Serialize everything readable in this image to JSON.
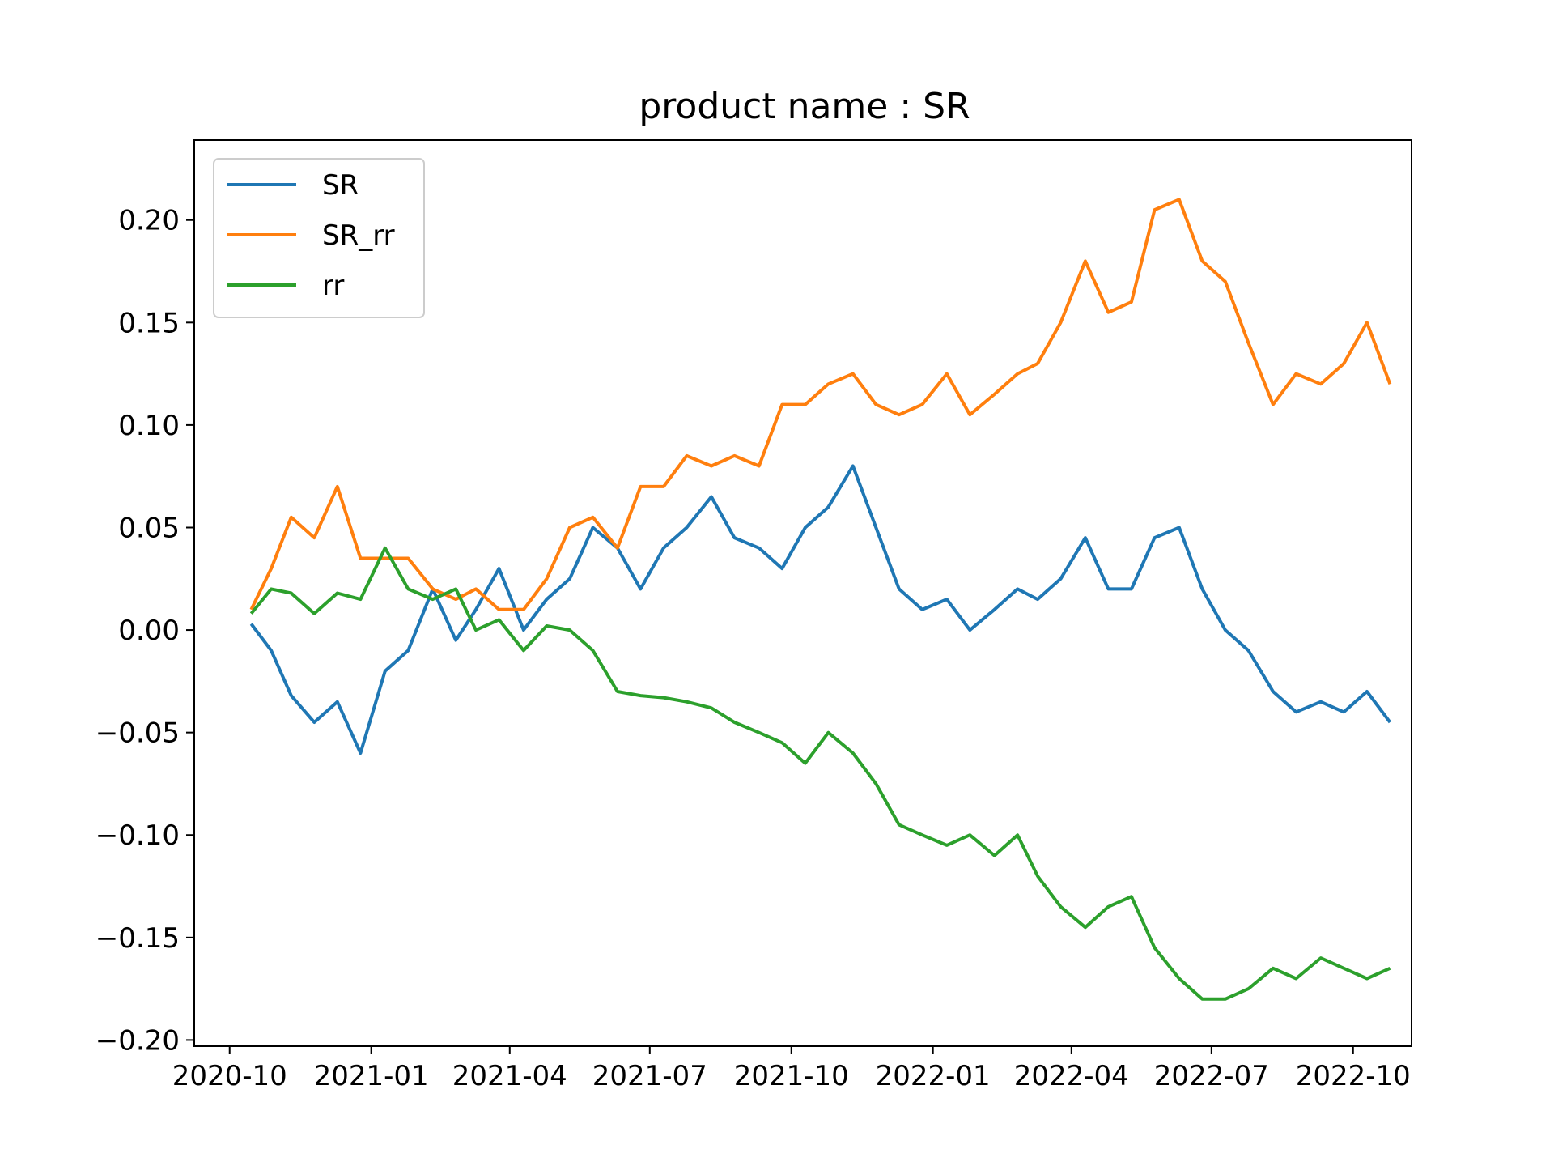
{
  "chart_data": {
    "type": "line",
    "title": "product name :    SR",
    "xlabel": "",
    "ylabel": "",
    "x_ticks": [
      "2020-10",
      "2021-01",
      "2021-04",
      "2021-07",
      "2021-10",
      "2022-01",
      "2022-04",
      "2022-07",
      "2022-10"
    ],
    "y_ticks": [
      "0.20",
      "0.15",
      "0.10",
      "0.05",
      "0.00",
      "−0.05",
      "−0.10",
      "−0.15",
      "−0.20"
    ],
    "y_tick_values": [
      0.2,
      0.15,
      0.1,
      0.05,
      0.0,
      -0.05,
      -0.1,
      -0.15,
      -0.2
    ],
    "xlim": [
      "2020-09-08",
      "2022-11-08"
    ],
    "ylim": [
      -0.203,
      0.239
    ],
    "grid": false,
    "legend_position": "upper left",
    "x": [
      "2020-10-15",
      "2020-10-28",
      "2020-11-10",
      "2020-11-25",
      "2020-12-10",
      "2020-12-25",
      "2021-01-10",
      "2021-01-25",
      "2021-02-10",
      "2021-02-25",
      "2021-03-10",
      "2021-03-25",
      "2021-04-10",
      "2021-04-25",
      "2021-05-10",
      "2021-05-25",
      "2021-06-10",
      "2021-06-25",
      "2021-07-10",
      "2021-07-25",
      "2021-08-10",
      "2021-08-25",
      "2021-09-10",
      "2021-09-25",
      "2021-10-10",
      "2021-10-25",
      "2021-11-10",
      "2021-11-25",
      "2021-12-10",
      "2021-12-25",
      "2022-01-10",
      "2022-01-25",
      "2022-02-10",
      "2022-02-25",
      "2022-03-10",
      "2022-03-25",
      "2022-04-10",
      "2022-04-25",
      "2022-05-10",
      "2022-05-25",
      "2022-06-10",
      "2022-06-25",
      "2022-07-10",
      "2022-07-25",
      "2022-08-10",
      "2022-08-25",
      "2022-09-10",
      "2022-09-25",
      "2022-10-10",
      "2022-10-25"
    ],
    "series": [
      {
        "name": "SR",
        "color": "#1f77b4",
        "values": [
          0.003,
          -0.01,
          -0.032,
          -0.045,
          -0.035,
          -0.06,
          -0.02,
          -0.01,
          0.02,
          -0.005,
          0.01,
          0.03,
          0.0,
          0.015,
          0.025,
          0.05,
          0.04,
          0.02,
          0.04,
          0.05,
          0.065,
          0.045,
          0.04,
          0.03,
          0.05,
          0.06,
          0.08,
          0.05,
          0.02,
          0.01,
          0.015,
          0.0,
          0.01,
          0.02,
          0.015,
          0.025,
          0.045,
          0.02,
          0.02,
          0.045,
          0.05,
          0.02,
          0.0,
          -0.01,
          -0.03,
          -0.04,
          -0.035,
          -0.04,
          -0.03,
          -0.045
        ]
      },
      {
        "name": "SR_rr",
        "color": "#ff7f0e",
        "values": [
          0.01,
          0.03,
          0.055,
          0.045,
          0.07,
          0.035,
          0.035,
          0.035,
          0.02,
          0.015,
          0.02,
          0.01,
          0.01,
          0.025,
          0.05,
          0.055,
          0.04,
          0.07,
          0.07,
          0.085,
          0.08,
          0.085,
          0.08,
          0.11,
          0.11,
          0.12,
          0.125,
          0.11,
          0.105,
          0.11,
          0.125,
          0.105,
          0.115,
          0.125,
          0.13,
          0.15,
          0.18,
          0.155,
          0.16,
          0.205,
          0.21,
          0.18,
          0.17,
          0.14,
          0.11,
          0.125,
          0.12,
          0.13,
          0.15,
          0.12
        ]
      },
      {
        "name": "rr",
        "color": "#2ca02c",
        "values": [
          0.008,
          0.02,
          0.018,
          0.008,
          0.018,
          0.015,
          0.04,
          0.02,
          0.015,
          0.02,
          0.0,
          0.005,
          -0.01,
          0.002,
          0.0,
          -0.01,
          -0.03,
          -0.032,
          -0.033,
          -0.035,
          -0.038,
          -0.045,
          -0.05,
          -0.055,
          -0.065,
          -0.05,
          -0.06,
          -0.075,
          -0.095,
          -0.1,
          -0.105,
          -0.1,
          -0.11,
          -0.1,
          -0.12,
          -0.135,
          -0.145,
          -0.135,
          -0.13,
          -0.155,
          -0.17,
          -0.18,
          -0.18,
          -0.175,
          -0.165,
          -0.17,
          -0.16,
          -0.165,
          -0.17,
          -0.165
        ]
      }
    ]
  }
}
